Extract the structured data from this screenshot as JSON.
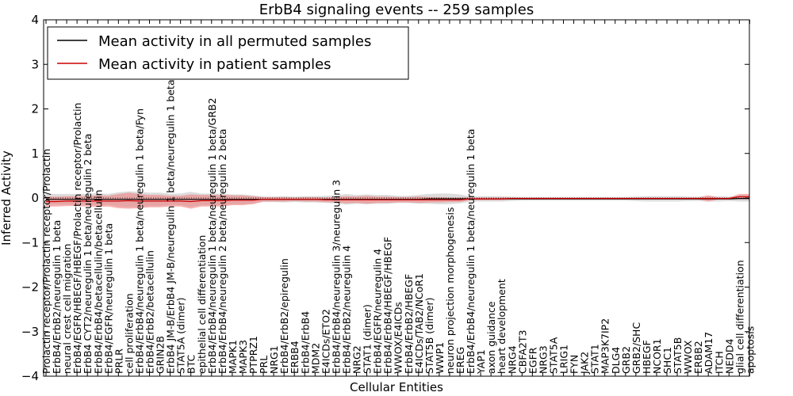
{
  "chart_data": {
    "type": "line",
    "title": "ErbB4 signaling events -- 259 samples",
    "xlabel": "Cellular Entities",
    "ylabel": "Inferred Activity",
    "ylim": [
      -4,
      4
    ],
    "yticks": [
      -4,
      -3,
      -2,
      -1,
      0,
      1,
      2,
      3,
      4
    ],
    "legend_position": "upper-left",
    "legend": [
      "Mean activity in all permuted samples",
      "Mean activity in patient samples"
    ],
    "colors": {
      "permuted": "#000000",
      "patient": "#cc0000",
      "patient_band": "#f08080",
      "permuted_band": "#c0c0c0"
    },
    "categories": [
      "Prolactin receptor/Prolactin receptor/Prolactin",
      "ErbB4/ErbB2/neuregulin 1 beta",
      "neural crest cell migration",
      "ErbB4/EGFR/HBEGF/HBEGF/Prolactin receptor/Prolactin",
      "ErbB4 CYT2/neuregulin 1 beta/neuregulin 2 beta",
      "ErbB4/ErbB4/betacellulin/betacellulin",
      "ErbB4/EGFR/neuregulin 1 beta",
      "PRLR",
      "cell proliferation",
      "ErbB4/ErbB4/neuregulin 1 beta/neuregulin 1 beta/Fyn",
      "ErbB4/ErbB2/betacellulin",
      "GRIN2B",
      "ErbB4 JM-B/ErbB4 JM-B/neuregulin 1 beta/neuregulin 1 beta",
      "STAT5A (dimer)",
      "BTC",
      "epithelial cell differentiation",
      "ErbB4/ErbB4/neuregulin 1 beta/neuregulin 1 beta/GRB2",
      "ErbB4/ErbB4/neuregulin 2 beta/neuregulin 2 beta",
      "MAPK1",
      "MAPK3",
      "PTPRZ1",
      "PRL",
      "NRG1",
      "ErbB4/ErbB2/epiregulin",
      "ERBB4",
      "ErbB4/ErbB4",
      "MDM2",
      "E4ICDs/ETO2",
      "ErbB4/ErbB4/neuregulin 3/neuregulin 3",
      "ErbB4/ErbB2/neuregulin 4",
      "NRG2",
      "STAT1 (dimer)",
      "ErbB4/EGFR/neuregulin 4",
      "ErbB4/ErbB4/HBEGF/HBEGF",
      "WWOX/E4ICDs",
      "ErbB4/ErbB2/HBEGF",
      "E4ICDs/TAB2/NCoR1",
      "STAT5B (dimer)",
      "WWP1",
      "neuron projection morphogenesis",
      "EREG",
      "ErbB4/ErbB4/neuregulin 1 beta/neuregulin 1 beta",
      "YAP1",
      "axon guidance",
      "heart development",
      "NRG4",
      "CBFA2T3",
      "EGFR",
      "NRG3",
      "STAT5A",
      "LRIG1",
      "FYN",
      "JAK2",
      "STAT1",
      "MAP3K7IP2",
      "DLG4",
      "GRB2",
      "GRB2/SHC",
      "HBEGF",
      "NCOR1",
      "SHC1",
      "STAT5B",
      "WWOX",
      "ERBB2",
      "ADAM17",
      "ITCH",
      "NEDD4",
      "glial cell differentiation",
      "apoptosis"
    ],
    "series": [
      {
        "name": "Mean activity in all permuted samples",
        "values": [
          -0.03,
          -0.03,
          -0.03,
          -0.03,
          -0.03,
          -0.03,
          -0.03,
          -0.03,
          -0.03,
          -0.03,
          -0.03,
          -0.03,
          -0.03,
          -0.03,
          -0.03,
          -0.03,
          -0.03,
          -0.03,
          -0.03,
          -0.03,
          -0.03,
          -0.03,
          -0.03,
          -0.03,
          -0.03,
          -0.03,
          -0.03,
          -0.03,
          -0.03,
          -0.03,
          -0.03,
          -0.03,
          -0.03,
          -0.03,
          -0.03,
          -0.03,
          -0.03,
          -0.02,
          -0.02,
          -0.02,
          -0.02,
          -0.02,
          -0.02,
          -0.02,
          -0.02,
          -0.02,
          -0.02,
          -0.02,
          -0.02,
          -0.02,
          -0.02,
          -0.02,
          -0.02,
          -0.02,
          -0.02,
          -0.02,
          -0.02,
          -0.02,
          -0.02,
          -0.02,
          -0.02,
          -0.02,
          -0.02,
          -0.02,
          -0.02,
          -0.02,
          -0.02,
          -0.01,
          -0.01
        ]
      },
      {
        "name": "Mean activity in patient samples",
        "values": [
          -0.08,
          -0.08,
          -0.07,
          -0.07,
          -0.07,
          -0.07,
          -0.07,
          -0.07,
          -0.06,
          -0.07,
          -0.07,
          -0.07,
          -0.07,
          -0.07,
          -0.08,
          -0.06,
          -0.06,
          -0.06,
          -0.05,
          -0.05,
          -0.05,
          -0.03,
          -0.03,
          -0.03,
          -0.03,
          -0.03,
          -0.03,
          -0.04,
          -0.04,
          -0.04,
          -0.04,
          -0.04,
          -0.04,
          -0.04,
          -0.04,
          -0.04,
          -0.04,
          -0.04,
          -0.04,
          -0.04,
          -0.04,
          -0.02,
          -0.02,
          -0.02,
          -0.02,
          -0.01,
          -0.01,
          -0.01,
          -0.01,
          -0.01,
          -0.01,
          -0.01,
          -0.01,
          -0.01,
          -0.01,
          -0.01,
          -0.01,
          -0.01,
          -0.01,
          -0.01,
          -0.01,
          -0.01,
          -0.01,
          -0.01,
          -0.01,
          -0.01,
          -0.01,
          0.03,
          0.03
        ],
        "band_halfwidth": [
          0.11,
          0.11,
          0.11,
          0.11,
          0.12,
          0.13,
          0.12,
          0.16,
          0.18,
          0.16,
          0.14,
          0.14,
          0.12,
          0.12,
          0.16,
          0.13,
          0.13,
          0.13,
          0.11,
          0.11,
          0.09,
          0.05,
          0.05,
          0.05,
          0.04,
          0.05,
          0.05,
          0.05,
          0.06,
          0.08,
          0.07,
          0.09,
          0.07,
          0.07,
          0.06,
          0.06,
          0.07,
          0.06,
          0.06,
          0.05,
          0.05,
          0.03,
          0.03,
          0.03,
          0.03,
          0.02,
          0.02,
          0.02,
          0.02,
          0.02,
          0.02,
          0.02,
          0.02,
          0.02,
          0.02,
          0.02,
          0.02,
          0.02,
          0.02,
          0.02,
          0.02,
          0.02,
          0.02,
          0.02,
          0.07,
          0.02,
          0.02,
          0.06,
          0.06
        ]
      }
    ],
    "permuted_band_halfwidth": [
      0.12,
      0.12,
      0.12,
      0.12,
      0.12,
      0.14,
      0.12,
      0.16,
      0.18,
      0.17,
      0.15,
      0.15,
      0.13,
      0.13,
      0.17,
      0.13,
      0.13,
      0.13,
      0.11,
      0.11,
      0.09,
      0.06,
      0.06,
      0.07,
      0.06,
      0.07,
      0.07,
      0.08,
      0.09,
      0.12,
      0.1,
      0.11,
      0.1,
      0.1,
      0.08,
      0.08,
      0.1,
      0.11,
      0.12,
      0.12,
      0.1,
      0.06,
      0.06,
      0.06,
      0.06,
      0.05,
      0.04,
      0.04,
      0.04,
      0.04,
      0.04,
      0.04,
      0.04,
      0.04,
      0.04,
      0.04,
      0.04,
      0.05,
      0.06,
      0.06,
      0.06,
      0.06,
      0.05,
      0.05,
      0.06,
      0.06,
      0.05,
      0.07,
      0.07
    ]
  }
}
